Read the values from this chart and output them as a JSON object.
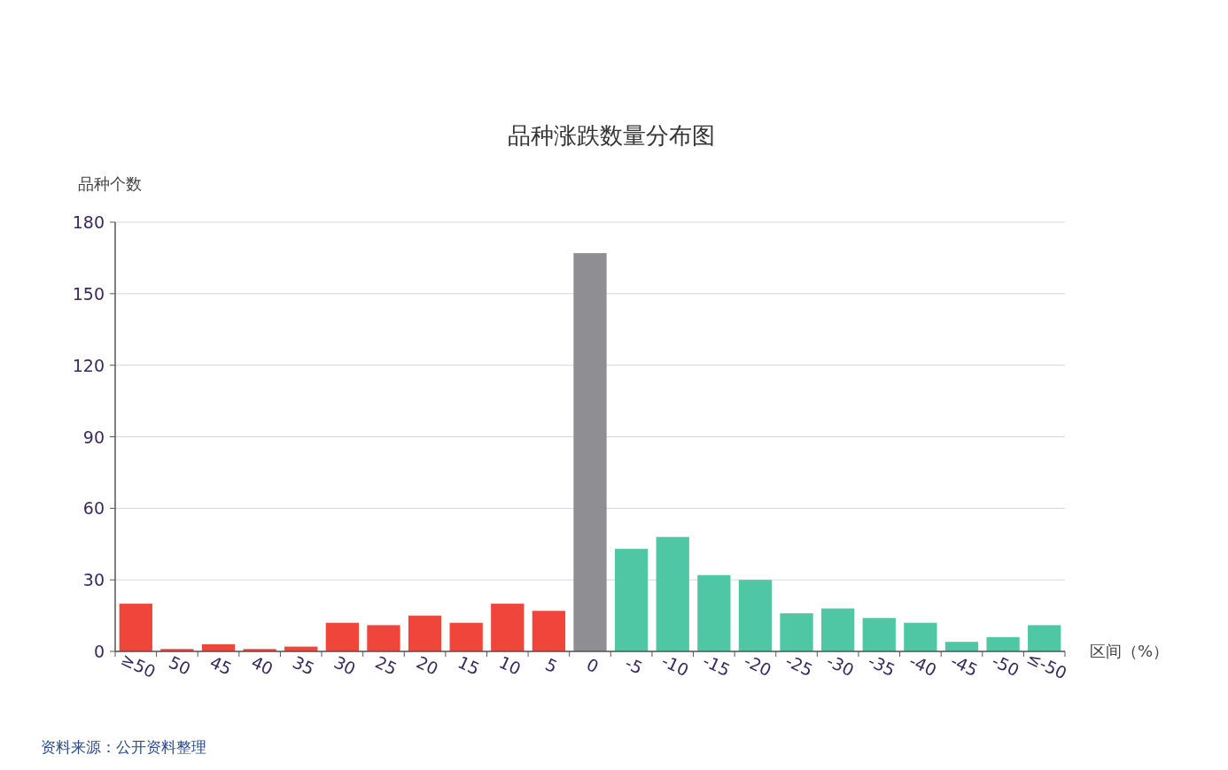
{
  "chart_data": {
    "type": "bar",
    "title": "品种涨跌数量分布图",
    "ylabel": "品种个数",
    "xlabel": "区间（%）",
    "categories": [
      "≥50",
      "50",
      "45",
      "40",
      "35",
      "30",
      "25",
      "20",
      "15",
      "10",
      "5",
      "0",
      "-5",
      "-10",
      "-15",
      "-20",
      "-25",
      "-30",
      "-35",
      "-40",
      "-45",
      "-50",
      "≤-50"
    ],
    "values": [
      20,
      1,
      3,
      1,
      2,
      12,
      11,
      15,
      12,
      20,
      17,
      167,
      43,
      48,
      32,
      30,
      16,
      18,
      14,
      12,
      4,
      6,
      11
    ],
    "colors": [
      "#f0453a",
      "#f0453a",
      "#f0453a",
      "#f0453a",
      "#f0453a",
      "#f0453a",
      "#f0453a",
      "#f0453a",
      "#f0453a",
      "#f0453a",
      "#f0453a",
      "#8e8e93",
      "#4fc7a5",
      "#4fc7a5",
      "#4fc7a5",
      "#4fc7a5",
      "#4fc7a5",
      "#4fc7a5",
      "#4fc7a5",
      "#4fc7a5",
      "#4fc7a5",
      "#4fc7a5",
      "#4fc7a5"
    ],
    "ylim": [
      0,
      180
    ],
    "yticks": [
      0,
      30,
      60,
      90,
      120,
      150,
      180
    ],
    "grid": "y",
    "annotations": [
      "资料来源：公开资料整理"
    ]
  }
}
